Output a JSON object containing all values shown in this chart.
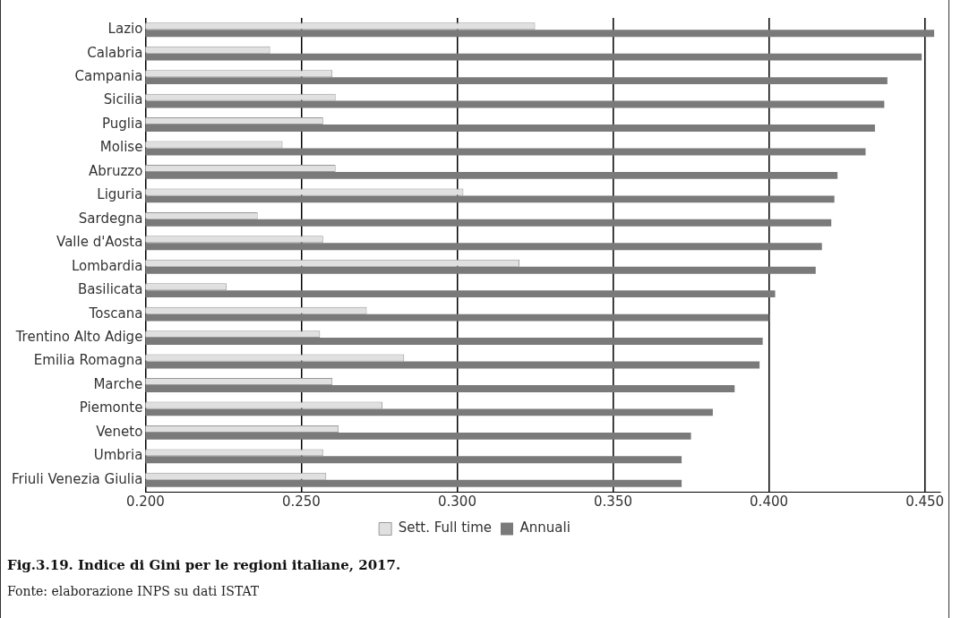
{
  "chart_data": {
    "type": "bar",
    "orientation": "horizontal",
    "title": "Fig.3.19.  Indice di Gini per le regioni italiane, 2017.",
    "annotations": [
      "Fonte: elaborazione INPS su dati ISTAT"
    ],
    "categories": [
      "Lazio",
      "Calabria",
      "Campania",
      "Sicilia",
      "Puglia",
      "Molise",
      "Abruzzo",
      "Liguria",
      "Sardegna",
      "Valle d'Aosta",
      "Lombardia",
      "Basilicata",
      "Toscana",
      "Trentino Alto Adige",
      "Emilia Romagna",
      "Marche",
      "Piemonte",
      "Veneto",
      "Umbria",
      "Friuli Venezia Giulia"
    ],
    "series": [
      {
        "name": "Sett. Full time",
        "color": "#e0e0e0",
        "values": [
          0.325,
          0.24,
          0.26,
          0.261,
          0.257,
          0.244,
          0.261,
          0.302,
          0.236,
          0.257,
          0.32,
          0.226,
          0.271,
          0.256,
          0.283,
          0.26,
          0.276,
          0.262,
          0.257,
          0.258
        ]
      },
      {
        "name": "Annuali",
        "color": "#7a7a7a",
        "values": [
          0.453,
          0.449,
          0.438,
          0.437,
          0.434,
          0.431,
          0.422,
          0.421,
          0.42,
          0.417,
          0.415,
          0.402,
          0.4,
          0.398,
          0.397,
          0.389,
          0.382,
          0.375,
          0.372,
          0.372
        ]
      }
    ],
    "xlim": [
      0.2,
      0.455
    ],
    "xticks": [
      {
        "value": 0.2,
        "label": "0.200"
      },
      {
        "value": 0.25,
        "label": "0.250"
      },
      {
        "value": 0.3,
        "label": "0.300"
      },
      {
        "value": 0.35,
        "label": "0.350"
      },
      {
        "value": 0.4,
        "label": "0.400"
      },
      {
        "value": 0.45,
        "label": "0.450"
      }
    ],
    "grid": "x",
    "legend": "bottom"
  }
}
